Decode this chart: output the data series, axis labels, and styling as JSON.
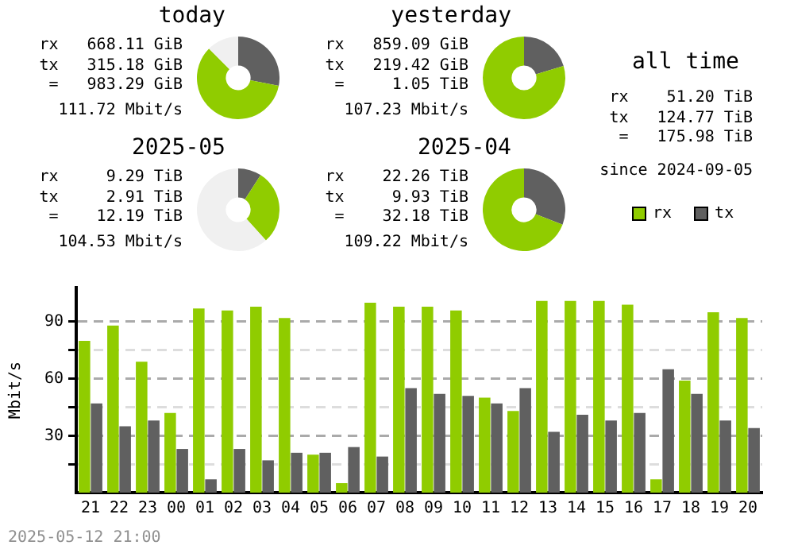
{
  "chart_data": [
    {
      "type": "donut",
      "title": "today",
      "categories": [
        null,
        null,
        null
      ],
      "values": [
        28.05,
        59.45,
        12.5
      ],
      "colors": [
        "#606060",
        "#90cc00",
        "#f0f0f0"
      ],
      "annotations": [
        "rx   668.11 GiB",
        "tx   315.18 GiB",
        "=   983.29 GiB",
        "111.72 Mbit/s"
      ]
    },
    {
      "type": "donut",
      "title": "yesterday",
      "categories": [
        null,
        null
      ],
      "values": [
        20.35,
        79.65
      ],
      "colors": [
        "#606060",
        "#90cc00"
      ],
      "annotations": [
        "rx   859.09 GiB",
        "tx   219.42 GiB",
        "=     1.05 TiB",
        "107.23 Mbit/s"
      ]
    },
    {
      "type": "donut",
      "title": "2025-05",
      "categories": [
        null,
        null,
        null
      ],
      "values": [
        9.15,
        29.15,
        61.7
      ],
      "colors": [
        "#606060",
        "#90cc00",
        "#f0f0f0"
      ],
      "annotations": [
        "rx     9.29 TiB",
        "tx     2.91 TiB",
        "=    12.19 TiB",
        "104.53 Mbit/s"
      ]
    },
    {
      "type": "donut",
      "title": "2025-04",
      "categories": [
        null,
        null
      ],
      "values": [
        30.85,
        69.15
      ],
      "colors": [
        "#606060",
        "#90cc00"
      ],
      "annotations": [
        "rx    22.26 TiB",
        "tx     9.93 TiB",
        "=    32.18 TiB",
        "109.22 Mbit/s"
      ]
    },
    {
      "type": "other",
      "title": "all time",
      "annotations": [
        "rx    51.20 TiB",
        "tx   124.77 TiB",
        "=   175.98 TiB",
        "since 2024-09-05"
      ]
    },
    {
      "type": "bar",
      "ylabel": "Mbit/s",
      "categories": [
        "21",
        "22",
        "23",
        "00",
        "01",
        "02",
        "03",
        "04",
        "05",
        "06",
        "07",
        "08",
        "09",
        "10",
        "11",
        "12",
        "13",
        "14",
        "15",
        "16",
        "17",
        "18",
        "19",
        "20"
      ],
      "series": [
        {
          "name": "rx",
          "color": "#90cc00",
          "values": [
            80,
            88,
            69,
            42,
            97,
            96,
            98,
            92,
            20,
            5,
            100,
            98,
            98,
            96,
            50,
            43,
            101,
            101,
            101,
            99,
            7,
            59,
            95,
            92
          ]
        },
        {
          "name": "tx",
          "color": "#606060",
          "values": [
            47,
            35,
            38,
            23,
            7,
            23,
            17,
            21,
            21,
            24,
            19,
            55,
            52,
            51,
            47,
            55,
            32,
            41,
            38,
            42,
            65,
            52,
            38,
            34
          ]
        }
      ],
      "ylim": [
        0,
        108
      ],
      "yticks": [
        {
          "value": 15,
          "label": null
        },
        30,
        {
          "value": 45,
          "label": null
        },
        60,
        {
          "value": 75,
          "label": null
        },
        90
      ],
      "grid": "y",
      "legend": "top right",
      "annotations": [
        "2025-05-12 21:00"
      ]
    }
  ]
}
